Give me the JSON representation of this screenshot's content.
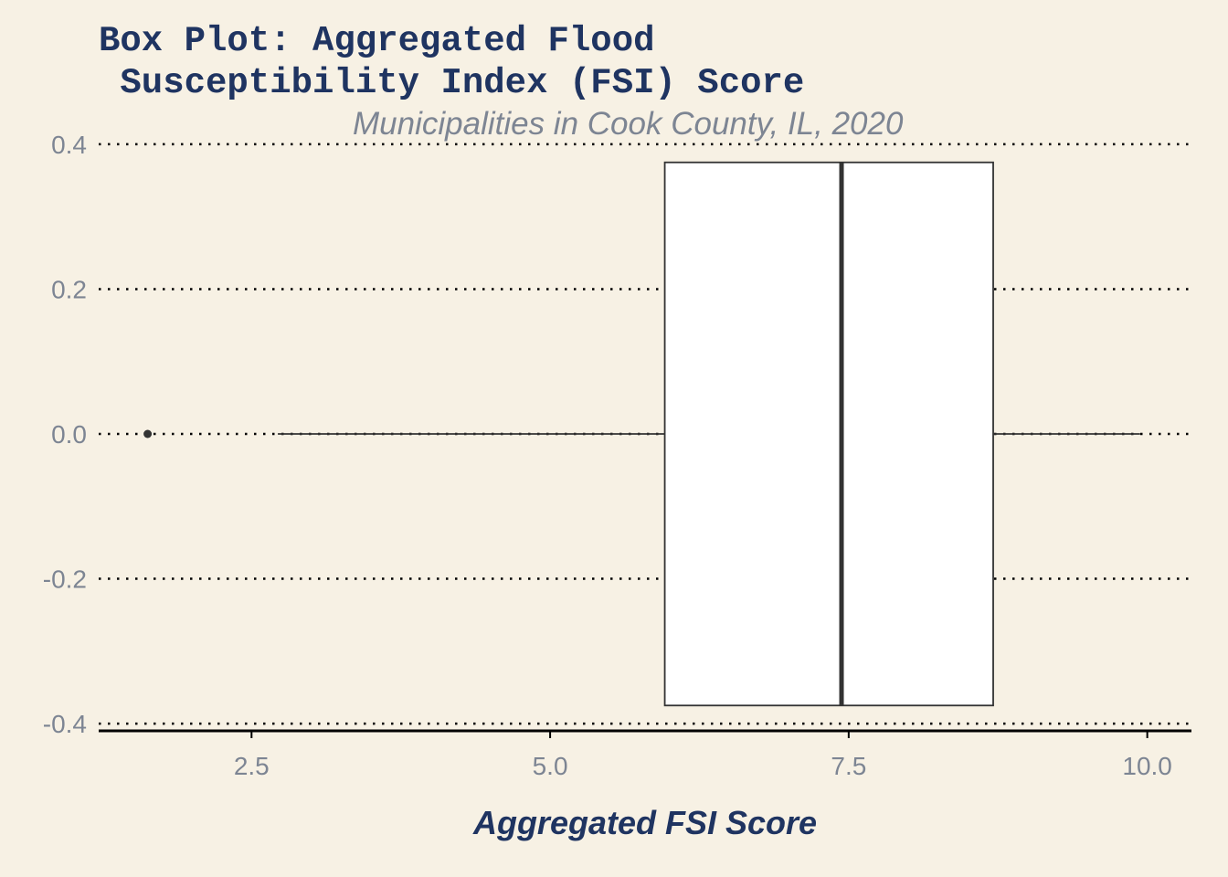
{
  "chart_data": {
    "type": "box",
    "title": "Box Plot: Aggregated Flood\n Susceptibility Index (FSI) Score",
    "subtitle": "Municipalities in Cook County, IL, 2020",
    "xlabel": "Aggregated FSI Score",
    "ylabel": "",
    "xlim": [
      1.22,
      10.37
    ],
    "ylim": [
      -0.41,
      0.41
    ],
    "x_ticks": [
      2.5,
      5.0,
      7.5,
      10.0
    ],
    "x_tick_labels": [
      "2.5",
      "5.0",
      "7.5",
      "10.0"
    ],
    "y_ticks": [
      0.4,
      0.2,
      0.0,
      -0.2,
      -0.4
    ],
    "y_tick_labels": [
      "0.4",
      "0.2",
      "0.0",
      "-0.2",
      "-0.4"
    ],
    "grid": "horizontal dotted",
    "box": {
      "min": 2.72,
      "q1": 5.96,
      "median": 7.44,
      "q3": 8.71,
      "max": 9.94,
      "box_ymin": -0.375,
      "box_ymax": 0.375,
      "outliers": [
        1.63
      ]
    },
    "colors": {
      "background": "#f7f1e4",
      "box_fill": "#ffffff",
      "box_stroke": "#333333",
      "title": "#1f3461",
      "subtitle": "#7d8593",
      "tick": "#7d8593"
    }
  }
}
